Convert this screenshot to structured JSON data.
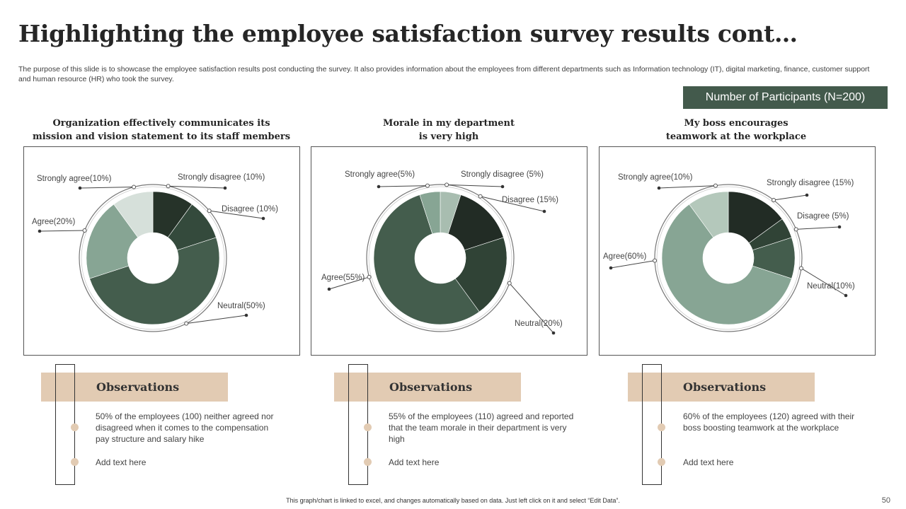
{
  "title": "Highlighting the employee satisfaction survey results cont…",
  "description": "The purpose of this slide is to showcase the employee satisfaction results post conducting the survey. It also provides information about the employees from different departments such as Information technology (IT),  digital marketing, finance, customer support and human resource (HR) who took the survey.",
  "participants_label": "Number of Participants (N=200)",
  "chart_data": [
    {
      "type": "pie",
      "title": "Organization effectively communicates its\nmission and vision statement to its staff members",
      "slices": [
        {
          "label": "Strongly disagree (10%)",
          "value": 10,
          "color": "#263329"
        },
        {
          "label": "Disagree (10%)",
          "value": 10,
          "color": "#344a3c"
        },
        {
          "label": "Neutral(50%)",
          "value": 50,
          "color": "#445d4d"
        },
        {
          "label": "Agree(20%)",
          "value": 20,
          "color": "#87a594"
        },
        {
          "label": "Strongly agree(10%)",
          "value": 10,
          "color": "#d6e0da"
        }
      ]
    },
    {
      "type": "pie",
      "title": "Morale in my department\nis very high",
      "slices": [
        {
          "label": "Strongly disagree (5%)",
          "value": 5,
          "color": "#a8bdb0"
        },
        {
          "label": "Disagree (15%)",
          "value": 15,
          "color": "#222c25"
        },
        {
          "label": "Neutral(20%)",
          "value": 20,
          "color": "#304336"
        },
        {
          "label": "Agree(55%)",
          "value": 55,
          "color": "#445d4d"
        },
        {
          "label": "Strongly agree(5%)",
          "value": 5,
          "color": "#87a594"
        }
      ]
    },
    {
      "type": "pie",
      "title": "My boss encourages\nteamwork at the workplace",
      "slices": [
        {
          "label": "Strongly disagree (15%)",
          "value": 15,
          "color": "#222c25"
        },
        {
          "label": "Disagree (5%)",
          "value": 5,
          "color": "#304336"
        },
        {
          "label": "Neutral(10%)",
          "value": 10,
          "color": "#445d4d"
        },
        {
          "label": "Agree(60%)",
          "value": 60,
          "color": "#87a594"
        },
        {
          "label": "Strongly agree(10%)",
          "value": 10,
          "color": "#b4c8bb"
        }
      ]
    }
  ],
  "observations": [
    {
      "heading": "Observations",
      "point1": "50% of the employees (100) neither agreed nor disagreed when it comes to the compensation pay structure and salary hike",
      "point2": "Add text here"
    },
    {
      "heading": "Observations",
      "point1": "55% of the employees (110) agreed and reported that the team morale in their department  is very high",
      "point2": "Add text here"
    },
    {
      "heading": "Observations",
      "point1": "60% of the employees (120) agreed with their boss boosting teamwork at the workplace",
      "point2": "Add text here"
    }
  ],
  "footnote": "This graph/chart is linked to excel, and changes automatically based on data. Just left click on it and select “Edit Data”.",
  "page_number": "50"
}
